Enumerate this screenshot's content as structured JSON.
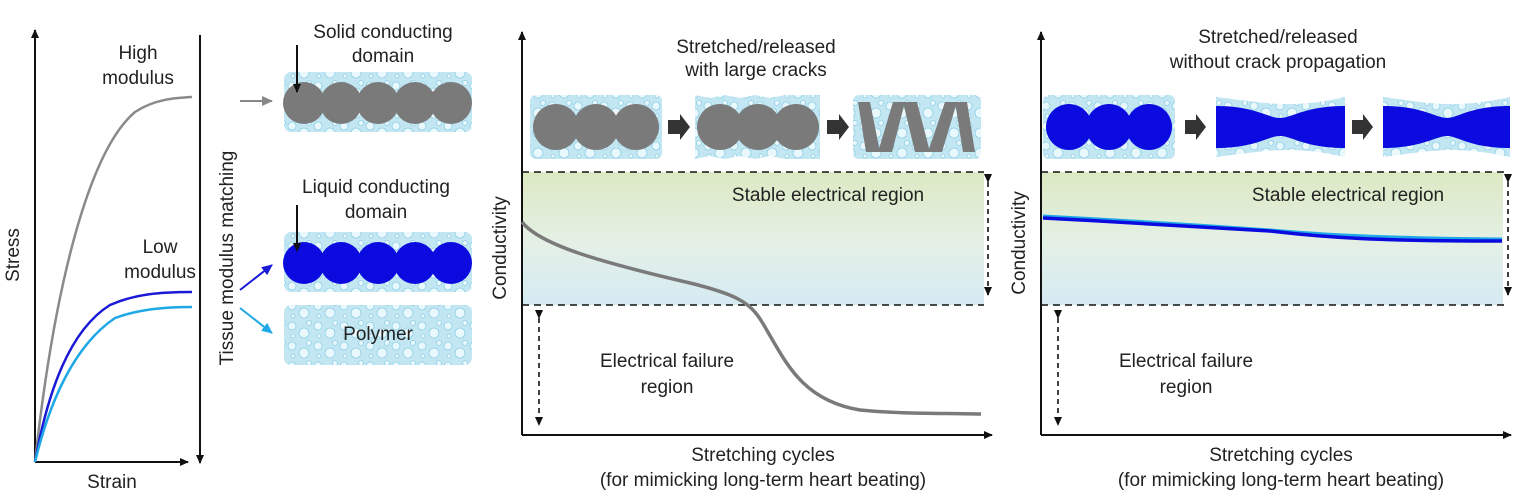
{
  "left_plot": {
    "y_axis_label": "Stress",
    "x_axis_label": "Strain",
    "high_modulus_lines": [
      "High",
      "modulus"
    ],
    "low_modulus_lines": [
      "Low",
      "modulus"
    ],
    "matching_label": "Tissue modulus matching"
  },
  "materials": {
    "solid_label_lines": [
      "Solid conducting",
      "domain"
    ],
    "liquid_label_lines": [
      "Liquid conducting",
      "domain"
    ],
    "polymer_label": "Polymer"
  },
  "middle_panel": {
    "title_lines": [
      "Stretched/released",
      "with large cracks"
    ],
    "stable_region": "Stable electrical region",
    "failure_lines": [
      "Electrical failure",
      "region"
    ],
    "y_axis_label": "Conductivity",
    "x_axis_lines": [
      "Stretching cycles",
      "(for mimicking long-term heart beating)"
    ]
  },
  "right_panel": {
    "title_lines": [
      "Stretched/released",
      "without crack propagation"
    ],
    "stable_region": "Stable electrical region",
    "failure_lines": [
      "Electrical failure",
      "region"
    ],
    "y_axis_label": "Conductivity",
    "x_axis_lines": [
      "Stretching cycles",
      "(for mimicking long-term heart beating)"
    ]
  },
  "colors": {
    "high_modulus": "#8a8a8a",
    "low_modulus_dark": "#1a1ad6",
    "low_modulus_light": "#1fa8e6",
    "solid_domain": "#7a7a7a",
    "liquid_domain": "#0b0be0",
    "polymer_fill": "#bfe6f2",
    "stable_band_top": "#dfe9c6",
    "stable_band_bottom": "#d8ecf3"
  }
}
